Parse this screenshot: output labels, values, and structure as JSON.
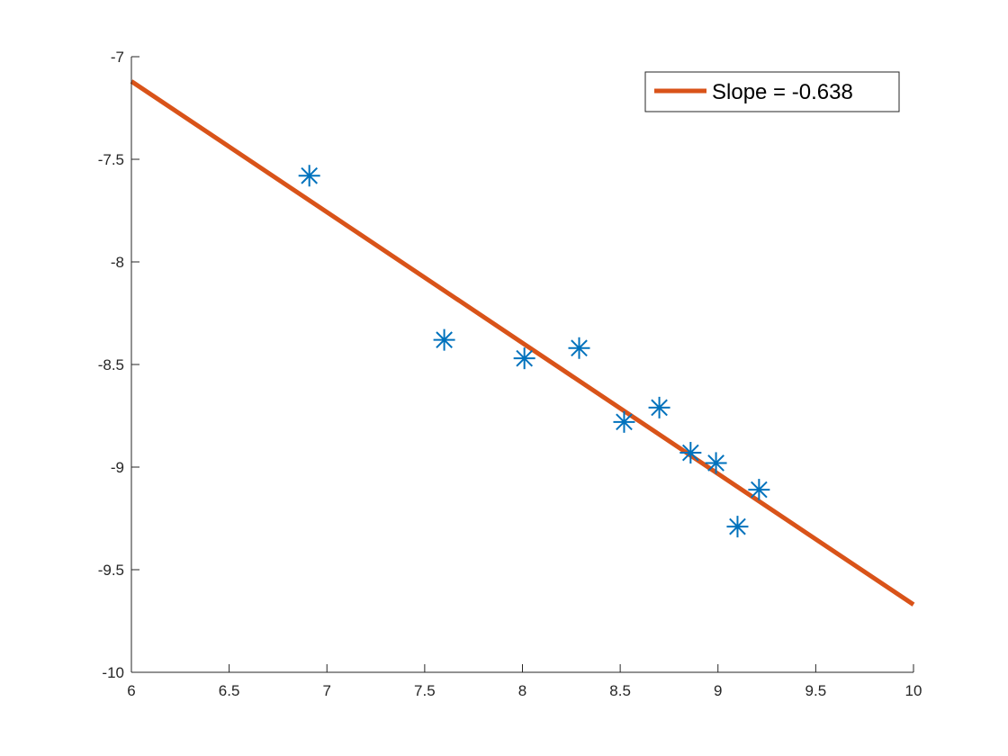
{
  "chart_data": {
    "type": "scatter",
    "title": "",
    "xlabel": "",
    "ylabel": "",
    "xlim": [
      6,
      10
    ],
    "ylim": [
      -10,
      -7
    ],
    "grid": false,
    "legend_placement": "top-right",
    "x_ticks": [
      {
        "value": 6,
        "label": "6"
      },
      {
        "value": 6.5,
        "label": "6.5"
      },
      {
        "value": 7,
        "label": "7"
      },
      {
        "value": 7.5,
        "label": "7.5"
      },
      {
        "value": 8,
        "label": "8"
      },
      {
        "value": 8.5,
        "label": "8.5"
      },
      {
        "value": 9,
        "label": "9"
      },
      {
        "value": 9.5,
        "label": "9.5"
      },
      {
        "value": 10,
        "label": "10"
      }
    ],
    "y_ticks": [
      {
        "value": -7,
        "label": "-7"
      },
      {
        "value": -7.5,
        "label": "-7.5"
      },
      {
        "value": -8,
        "label": "-8"
      },
      {
        "value": -8.5,
        "label": "-8.5"
      },
      {
        "value": -9,
        "label": "-9"
      },
      {
        "value": -9.5,
        "label": "-9.5"
      },
      {
        "value": -10,
        "label": "-10"
      }
    ],
    "points": {
      "marker": "asterisk",
      "color": "#0072BD",
      "x": [
        6.91,
        7.6,
        8.01,
        8.29,
        8.52,
        8.7,
        8.86,
        8.99,
        9.1,
        9.21
      ],
      "y": [
        -7.58,
        -8.38,
        -8.47,
        -8.42,
        -8.78,
        -8.71,
        -8.93,
        -8.98,
        -9.29,
        -9.11
      ]
    },
    "fit_line": {
      "name": "Slope = -0.638",
      "color": "#D95319",
      "x": [
        6,
        10
      ],
      "y": [
        -7.12,
        -9.67
      ]
    },
    "legend": {
      "entries": [
        {
          "label": "Slope = -0.638",
          "color": "#D95319"
        }
      ]
    }
  }
}
